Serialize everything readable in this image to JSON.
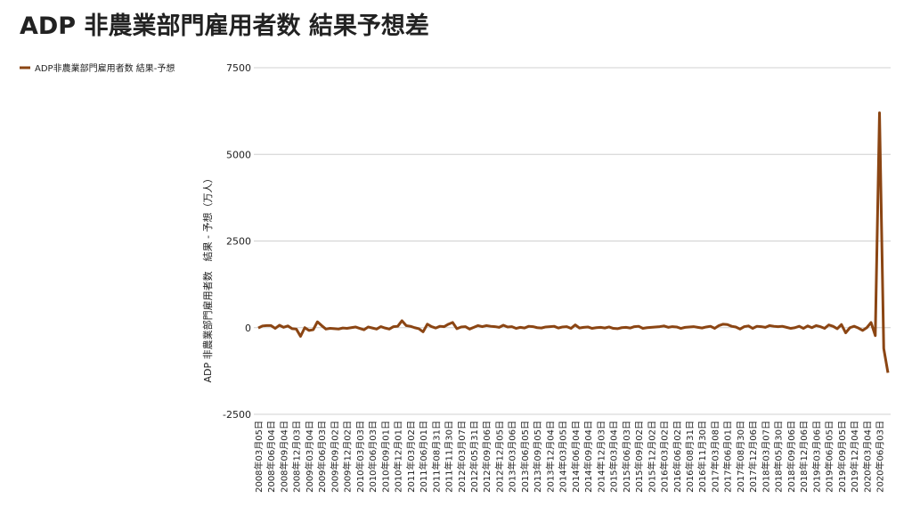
{
  "chart_data": {
    "type": "line",
    "title": "ADP 非農業部門雇用者数 結果予想差",
    "y_label": "ADP 非農業部門雇用者数　結果 - 予想（万人）",
    "ylim": [
      -2500,
      7500
    ],
    "yticks": [
      -2500,
      0,
      2500,
      5000,
      7500
    ],
    "grid": true,
    "legend": "top-left",
    "categories": [
      "2008年03月05日",
      null,
      null,
      "2008年06月04日",
      null,
      null,
      "2008年09月04日",
      null,
      null,
      "2008年12月03日",
      null,
      null,
      "2009年03月04日",
      null,
      null,
      "2009年06月03日",
      null,
      null,
      "2009年09月02日",
      null,
      null,
      "2009年12月02日",
      null,
      null,
      "2010年03月03日",
      null,
      null,
      "2010年06月03日",
      null,
      null,
      "2010年09月01日",
      null,
      null,
      "2010年12月01日",
      null,
      null,
      "2011年03月02日",
      null,
      null,
      "2011年06月01日",
      null,
      null,
      "2011年08月31日",
      null,
      null,
      "2011年11月30日",
      null,
      null,
      "2012年03月07日",
      null,
      null,
      "2012年05月31日",
      null,
      null,
      "2012年09月06日",
      null,
      null,
      "2012年12月05日",
      null,
      null,
      "2013年03月06日",
      null,
      null,
      "2013年06月05日",
      null,
      null,
      "2013年09月05日",
      null,
      null,
      "2013年12月04日",
      null,
      null,
      "2014年03月05日",
      null,
      null,
      "2014年06月04日",
      null,
      null,
      "2014年09月04日",
      null,
      null,
      "2014年12月03日",
      null,
      null,
      "2015年03月04日",
      null,
      null,
      "2015年06月03日",
      null,
      null,
      "2015年09月02日",
      null,
      null,
      "2015年12月02日",
      null,
      null,
      "2016年03月02日",
      null,
      null,
      "2016年06月02日",
      null,
      null,
      "2016年08月31日",
      null,
      null,
      "2016年11月30日",
      null,
      null,
      "2017年03月08日",
      null,
      null,
      "2017年06月01日",
      null,
      null,
      "2017年08月30日",
      null,
      null,
      "2017年12月06日",
      null,
      null,
      "2018年03月07日",
      null,
      null,
      "2018年05月30日",
      null,
      null,
      "2018年09月06日",
      null,
      null,
      "2018年12月06日",
      null,
      null,
      "2019年03月06日",
      null,
      null,
      "2019年06月05日",
      null,
      null,
      "2019年09月05日",
      null,
      null,
      "2019年12月04日",
      null,
      null,
      "2020年03月04日",
      null,
      null,
      "2020年06月03日",
      null,
      null
    ],
    "series": [
      {
        "name": "ADP非農業部門雇用者数 結果-予想",
        "color": "#8b4513",
        "values": [
          -10,
          50,
          60,
          60,
          -20,
          70,
          10,
          50,
          -30,
          -40,
          -250,
          0,
          -80,
          -60,
          170,
          60,
          -40,
          -20,
          -30,
          -40,
          -10,
          -20,
          0,
          20,
          -20,
          -60,
          20,
          -10,
          -40,
          30,
          -10,
          -40,
          30,
          40,
          200,
          60,
          40,
          0,
          -30,
          -120,
          100,
          30,
          -10,
          40,
          30,
          100,
          150,
          -30,
          20,
          30,
          -40,
          10,
          60,
          30,
          60,
          40,
          30,
          10,
          70,
          20,
          30,
          -20,
          10,
          -10,
          40,
          30,
          0,
          -10,
          20,
          30,
          40,
          -10,
          20,
          30,
          -20,
          80,
          -10,
          10,
          20,
          -20,
          0,
          10,
          -10,
          20,
          -20,
          -30,
          0,
          10,
          -10,
          30,
          40,
          -20,
          0,
          10,
          20,
          30,
          50,
          10,
          30,
          20,
          -20,
          10,
          20,
          30,
          10,
          -10,
          20,
          40,
          -20,
          60,
          100,
          90,
          40,
          20,
          -40,
          30,
          50,
          -20,
          40,
          30,
          10,
          60,
          40,
          30,
          40,
          10,
          -20,
          0,
          40,
          -20,
          50,
          0,
          60,
          30,
          -20,
          80,
          40,
          -30,
          90,
          -150,
          0,
          40,
          -10,
          -80,
          0,
          150,
          -230,
          6200,
          -600,
          -1300
        ]
      }
    ]
  }
}
